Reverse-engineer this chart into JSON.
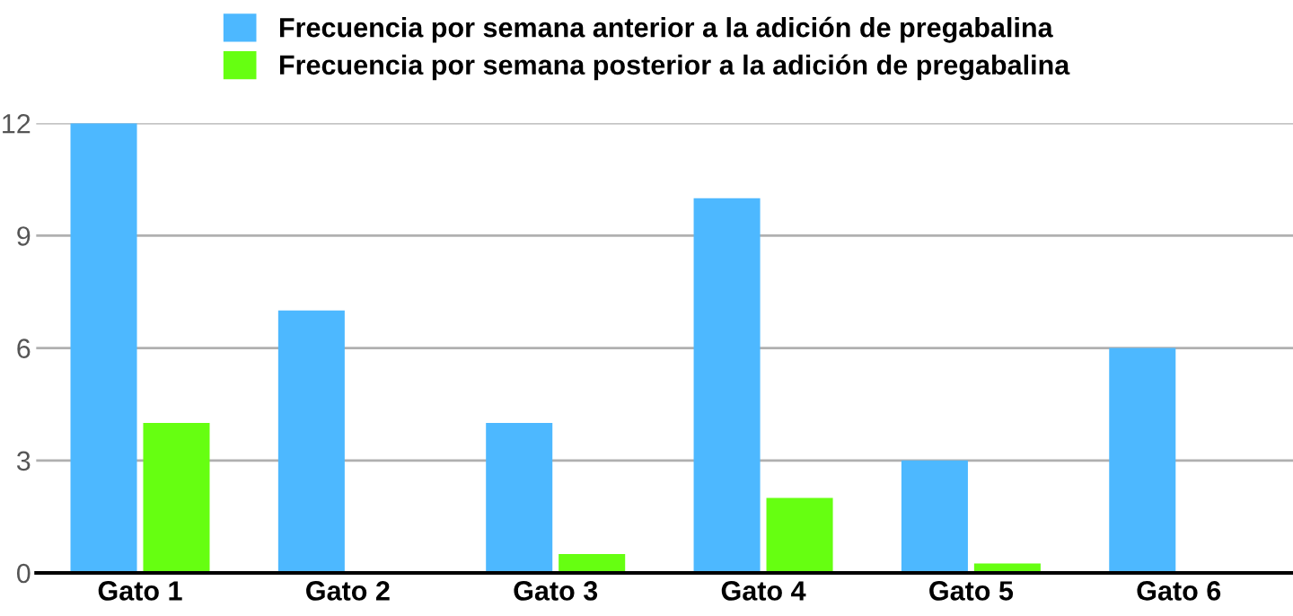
{
  "chart_data": {
    "type": "bar",
    "categories": [
      "Gato 1",
      "Gato 2",
      "Gato 3",
      "Gato 4",
      "Gato 5",
      "Gato 6"
    ],
    "series": [
      {
        "name": "Frecuencia por semana anterior a la adición de pregabalina",
        "color": "#4db8ff",
        "values": [
          12,
          7,
          4,
          10,
          3,
          6
        ]
      },
      {
        "name": "Frecuencia por semana posterior a la adición de pregabalina",
        "color": "#66ff11",
        "values": [
          4,
          0,
          0.5,
          2,
          0.25,
          0
        ]
      }
    ],
    "ylim": [
      0,
      12
    ],
    "yticks": [
      0,
      3,
      6,
      9,
      12
    ],
    "grid": "y",
    "legend": "top"
  }
}
